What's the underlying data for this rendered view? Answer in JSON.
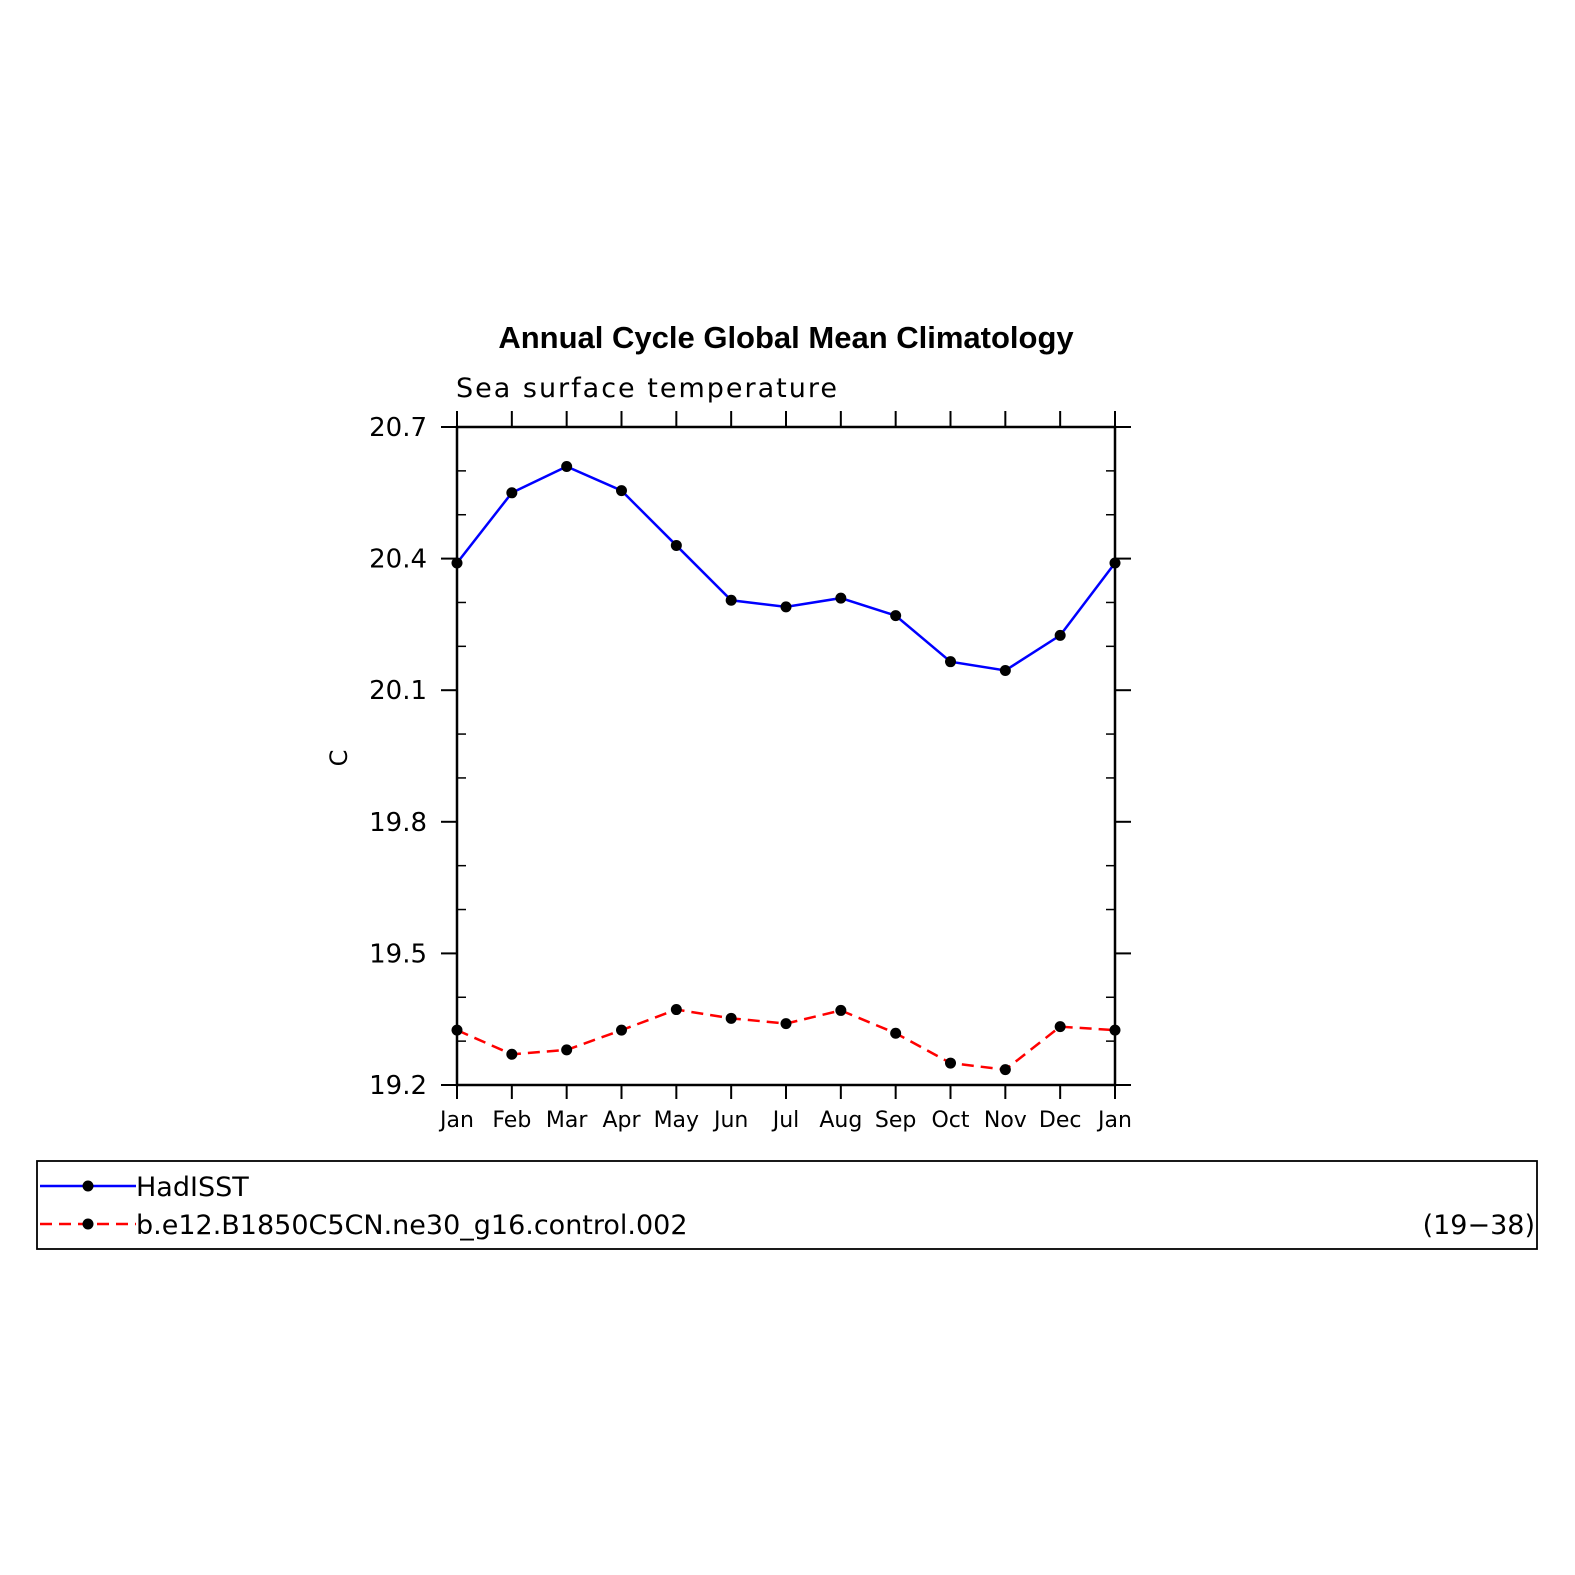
{
  "chart_data": {
    "type": "line",
    "title": "Annual Cycle Global Mean Climatology",
    "subtitle": "Sea surface temperature",
    "ylabel": "C",
    "xlabel": "",
    "categories": [
      "Jan",
      "Feb",
      "Mar",
      "Apr",
      "May",
      "Jun",
      "Jul",
      "Aug",
      "Sep",
      "Oct",
      "Nov",
      "Dec",
      "Jan"
    ],
    "ylim": [
      19.2,
      20.7
    ],
    "yticks": [
      "20.7",
      "20.4",
      "20.1",
      "19.8",
      "19.5",
      "19.2"
    ],
    "ytick_values": [
      20.7,
      20.4,
      20.1,
      19.8,
      19.5,
      19.2
    ],
    "series": [
      {
        "name": "HadISST",
        "color": "#0000ff",
        "line_style": "solid",
        "values": [
          20.39,
          20.55,
          20.61,
          20.555,
          20.43,
          20.305,
          20.29,
          20.31,
          20.27,
          20.165,
          20.145,
          20.225,
          20.39
        ]
      },
      {
        "name": "b.e12.B1850C5CN.ne30_g16.control.002",
        "color": "#ff0000",
        "line_style": "dashed",
        "values": [
          19.325,
          19.27,
          19.28,
          19.325,
          19.372,
          19.352,
          19.34,
          19.37,
          19.318,
          19.25,
          19.235,
          19.333,
          19.325
        ]
      }
    ],
    "legend": {
      "placement": "bottom",
      "note": "(19−38)"
    },
    "grid": false
  }
}
